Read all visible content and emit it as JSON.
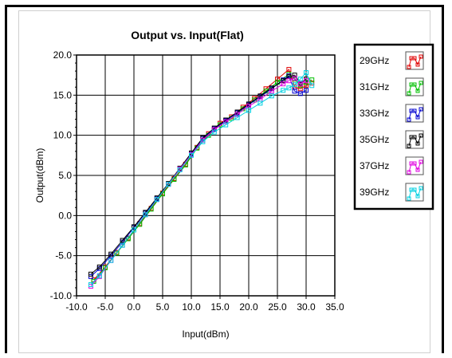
{
  "chart_data": {
    "type": "line",
    "title": "Output vs. Input(Flat)",
    "xlabel": "Input(dBm)",
    "ylabel": "Output(dBm)",
    "xlim": [
      -10,
      35
    ],
    "ylim": [
      -10,
      20
    ],
    "xticks": [
      "-10.0",
      "-5.0",
      "0.0",
      "5.0",
      "10.0",
      "15.0",
      "20.0",
      "25.0",
      "30.0",
      "35.0"
    ],
    "yticks": [
      "20.0",
      "15.0",
      "10.0",
      "5.0",
      "0.0",
      "-5.0",
      "-10.0"
    ],
    "grid": true,
    "legend_position": "right",
    "series": [
      {
        "name": "29GHz",
        "color": "#e00000",
        "x": [
          -7,
          -5,
          -3,
          -1,
          1,
          3,
          5,
          7,
          9,
          11,
          13,
          15,
          17,
          19,
          21,
          23,
          25,
          27,
          28,
          29,
          30,
          31
        ],
        "y": [
          -8.0,
          -6.4,
          -4.6,
          -2.8,
          -1.0,
          0.9,
          2.8,
          4.6,
          6.4,
          8.5,
          10.2,
          11.5,
          12.3,
          13.5,
          14.6,
          15.8,
          17.0,
          18.2,
          16.0,
          15.8,
          16.2,
          16.5
        ]
      },
      {
        "name": "31GHz",
        "color": "#00c000",
        "x": [
          -7,
          -5,
          -3,
          -1,
          1,
          3,
          5,
          7,
          9,
          11,
          13,
          15,
          17,
          19,
          21,
          23,
          25,
          27,
          28,
          29,
          30,
          31
        ],
        "y": [
          -8.2,
          -6.5,
          -4.7,
          -2.9,
          -1.1,
          0.8,
          2.7,
          4.5,
          6.3,
          8.4,
          10.0,
          11.3,
          12.1,
          13.3,
          14.4,
          15.5,
          16.6,
          17.6,
          17.0,
          16.2,
          16.6,
          16.9
        ]
      },
      {
        "name": "33GHz",
        "color": "#0000d0",
        "x": [
          -7.5,
          -6,
          -4,
          -2,
          0,
          2,
          4,
          6,
          8,
          10,
          12,
          14,
          16,
          18,
          20,
          22,
          24,
          26,
          27,
          28,
          29,
          30
        ],
        "y": [
          -7.6,
          -6.6,
          -5.0,
          -3.3,
          -1.5,
          0.3,
          2.1,
          3.9,
          5.8,
          7.7,
          9.6,
          10.8,
          11.8,
          12.8,
          13.8,
          14.8,
          15.8,
          16.9,
          17.4,
          15.5,
          15.2,
          15.6
        ]
      },
      {
        "name": "35GHz",
        "color": "#000000",
        "x": [
          -7.5,
          -6,
          -4,
          -2,
          0,
          2,
          4,
          6,
          8,
          10,
          12,
          14,
          16,
          18,
          20,
          22,
          24,
          26,
          27,
          28,
          29,
          30
        ],
        "y": [
          -7.3,
          -6.4,
          -4.8,
          -3.1,
          -1.4,
          0.4,
          2.2,
          4.0,
          5.9,
          7.8,
          9.7,
          10.9,
          11.9,
          12.9,
          13.9,
          14.9,
          15.9,
          16.8,
          17.3,
          17.5,
          16.5,
          17.0
        ]
      },
      {
        "name": "37GHz",
        "color": "#e000e0",
        "x": [
          -7.5,
          -6,
          -4,
          -2,
          0,
          2,
          4,
          6,
          8,
          10,
          12,
          14,
          16,
          18,
          20,
          22,
          24,
          26,
          27,
          28,
          29,
          30
        ],
        "y": [
          -8.8,
          -7.6,
          -5.6,
          -3.7,
          -1.8,
          0.1,
          2.0,
          3.9,
          5.8,
          7.6,
          9.4,
          10.7,
          11.7,
          12.6,
          13.6,
          14.5,
          15.5,
          16.4,
          16.8,
          17.1,
          16.4,
          16.8
        ]
      },
      {
        "name": "39GHz",
        "color": "#00d0e0",
        "x": [
          -7.5,
          -6,
          -4,
          -2,
          0,
          2,
          4,
          6,
          8,
          10,
          12,
          14,
          16,
          18,
          20,
          22,
          24,
          26,
          27,
          28,
          29,
          30,
          31
        ],
        "y": [
          -8.6,
          -7.5,
          -5.6,
          -3.7,
          -1.8,
          0.1,
          2.0,
          3.9,
          5.7,
          7.5,
          9.2,
          10.4,
          11.3,
          12.2,
          13.1,
          14.0,
          14.9,
          15.6,
          15.9,
          16.3,
          17.0,
          17.8,
          16.2
        ]
      }
    ]
  }
}
